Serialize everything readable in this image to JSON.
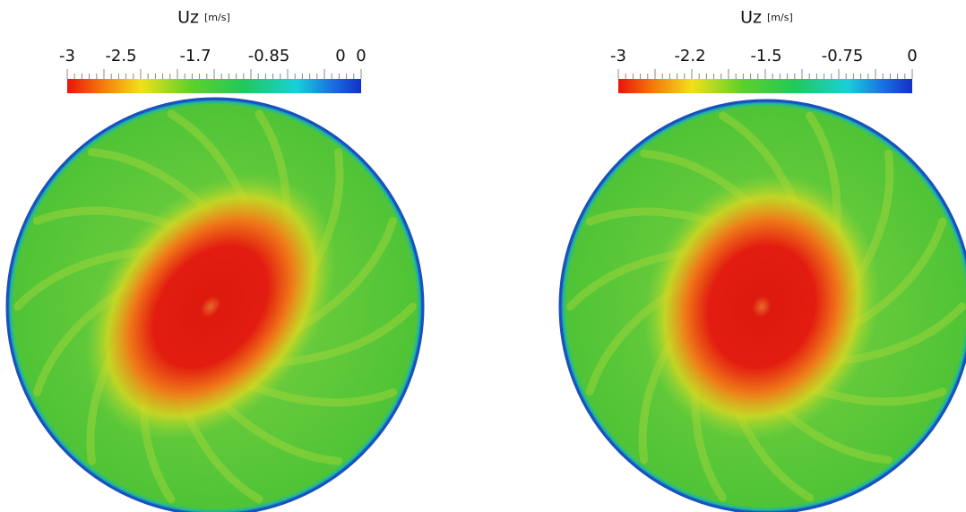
{
  "panels": [
    {
      "title": "Uz",
      "unit": "[m/s]",
      "ticks": [
        "-3",
        "-2.5",
        "-1.7",
        "-0.85",
        "0",
        "0"
      ]
    },
    {
      "title": "Uz",
      "unit": "[m/s]",
      "ticks": [
        "-3",
        "-2.2",
        "-1.5",
        "-0.75",
        "0"
      ]
    }
  ]
}
